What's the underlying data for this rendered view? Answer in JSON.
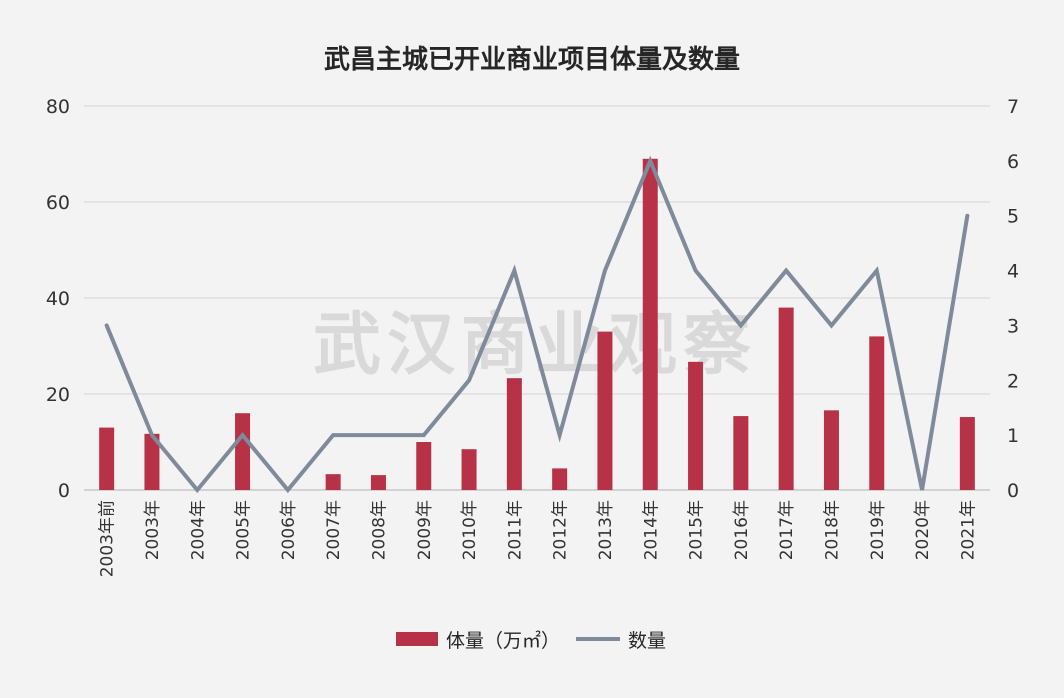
{
  "chart_data": {
    "type": "bar+line",
    "title": "武昌主城已开业商业项目体量及数量",
    "watermark": "武汉商业观察",
    "categories": [
      "2003年前",
      "2003年",
      "2004年",
      "2005年",
      "2006年",
      "2007年",
      "2008年",
      "2009年",
      "2010年",
      "2011年",
      "2012年",
      "2013年",
      "2014年",
      "2015年",
      "2016年",
      "2017年",
      "2018年",
      "2019年",
      "2020年",
      "2021年"
    ],
    "series": [
      {
        "name": "体量（万㎡）",
        "type": "bar",
        "axis": "left",
        "color": "#b83247",
        "values": [
          13,
          11.7,
          0,
          16,
          0,
          3.3,
          3.1,
          10,
          8.5,
          23.3,
          4.5,
          33,
          69,
          26.7,
          15.4,
          38,
          16.6,
          32,
          0,
          15.2
        ]
      },
      {
        "name": "数量",
        "type": "line",
        "axis": "right",
        "color": "#7f8a9a",
        "values": [
          3,
          1,
          0,
          1,
          0,
          1,
          1,
          1,
          2,
          4,
          1,
          4,
          6,
          4,
          3,
          4,
          3,
          4,
          0,
          5
        ]
      }
    ],
    "y_left": {
      "range": [
        0,
        80
      ],
      "ticks": [
        "0",
        "20",
        "40",
        "60",
        "80"
      ]
    },
    "y_right": {
      "range": [
        0,
        7
      ],
      "ticks": [
        "0",
        "1",
        "2",
        "3",
        "4",
        "5",
        "6",
        "7"
      ]
    },
    "grid": true,
    "legend_position": "bottom-center"
  }
}
